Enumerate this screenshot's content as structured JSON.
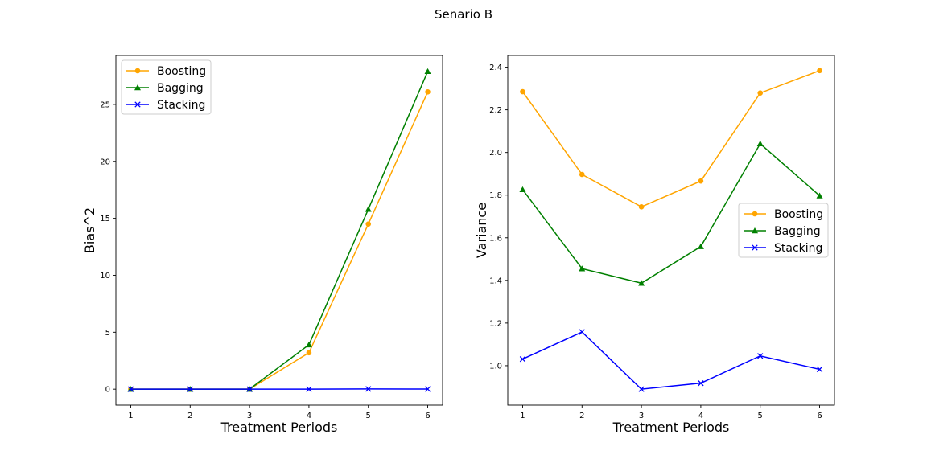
{
  "figure_title": "Senario B",
  "chart_data": [
    {
      "type": "line",
      "title": "",
      "xlabel": "Treatment Periods",
      "ylabel": "Bias^2",
      "x": [
        1,
        2,
        3,
        4,
        5,
        6
      ],
      "xlim": [
        0.75,
        6.25
      ],
      "ylim": [
        -1.4,
        29.3
      ],
      "yticks": [
        0,
        5,
        10,
        15,
        20,
        25
      ],
      "grid": false,
      "legend_position": "top-left",
      "series": [
        {
          "name": "Boosting",
          "color": "#ffa500",
          "marker": "circle",
          "values": [
            0.0,
            0.0,
            0.0,
            3.2,
            14.5,
            26.1
          ]
        },
        {
          "name": "Bagging",
          "color": "#008000",
          "marker": "triangle",
          "values": [
            0.0,
            0.0,
            0.0,
            3.9,
            15.8,
            27.9
          ]
        },
        {
          "name": "Stacking",
          "color": "#0000ff",
          "marker": "x",
          "values": [
            0.0,
            0.0,
            0.0,
            0.0,
            0.02,
            0.01
          ]
        }
      ]
    },
    {
      "type": "line",
      "title": "",
      "xlabel": "Treatment Periods",
      "ylabel": "Variance",
      "x": [
        1,
        2,
        3,
        4,
        5,
        6
      ],
      "xlim": [
        0.75,
        6.25
      ],
      "ylim": [
        0.815,
        2.455
      ],
      "yticks": [
        1.0,
        1.2,
        1.4,
        1.6,
        1.8,
        2.0,
        2.2,
        2.4
      ],
      "grid": false,
      "legend_position": "center-right",
      "series": [
        {
          "name": "Boosting",
          "color": "#ffa500",
          "marker": "circle",
          "values": [
            2.285,
            1.897,
            1.745,
            1.866,
            2.279,
            2.384
          ]
        },
        {
          "name": "Bagging",
          "color": "#008000",
          "marker": "triangle",
          "values": [
            1.826,
            1.455,
            1.387,
            1.559,
            2.041,
            1.797
          ]
        },
        {
          "name": "Stacking",
          "color": "#0000ff",
          "marker": "x",
          "values": [
            1.031,
            1.158,
            0.89,
            0.918,
            1.046,
            0.983
          ]
        }
      ]
    }
  ]
}
